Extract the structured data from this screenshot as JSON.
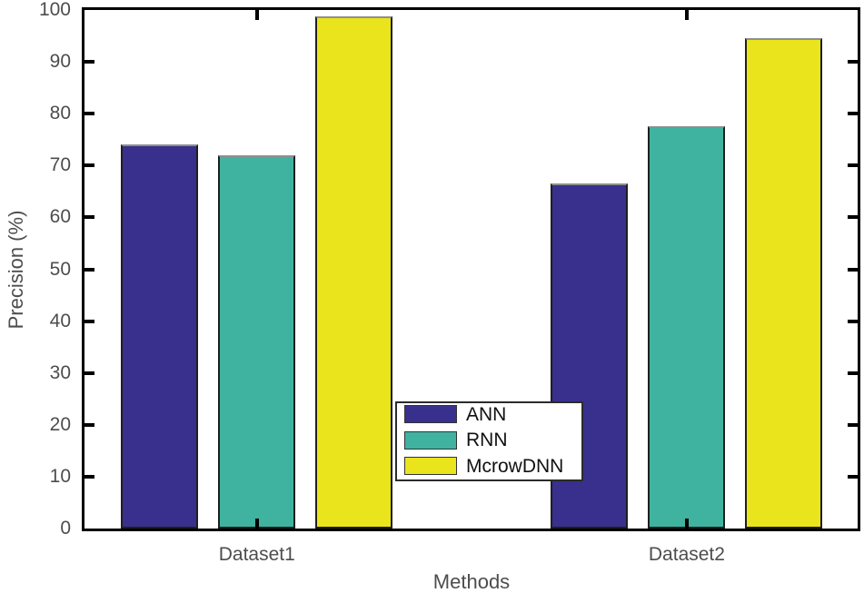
{
  "chart_data": {
    "type": "bar",
    "title": "",
    "xlabel": "Methods",
    "ylabel": "Precision (%)",
    "categories": [
      "Dataset1",
      "Dataset2"
    ],
    "series": [
      {
        "name": "ANN",
        "color": "#38308C",
        "values": [
          74.0,
          66.5
        ]
      },
      {
        "name": "RNN",
        "color": "#3FB3A0",
        "values": [
          72.0,
          77.5
        ]
      },
      {
        "name": "McrowDNN",
        "color": "#EAE41C",
        "values": [
          98.8,
          94.5
        ]
      }
    ],
    "ylim": [
      0,
      100
    ],
    "yticks": [
      0,
      10,
      20,
      30,
      40,
      50,
      60,
      70,
      80,
      90,
      100
    ],
    "grid": false,
    "legend_position": "inside-bottom-center",
    "colors": {
      "axis": "#000000",
      "tick_label": "#4d4d4d",
      "axis_label": "#4d4d4d",
      "legend_text": "#111111",
      "background": "#ffffff"
    }
  }
}
